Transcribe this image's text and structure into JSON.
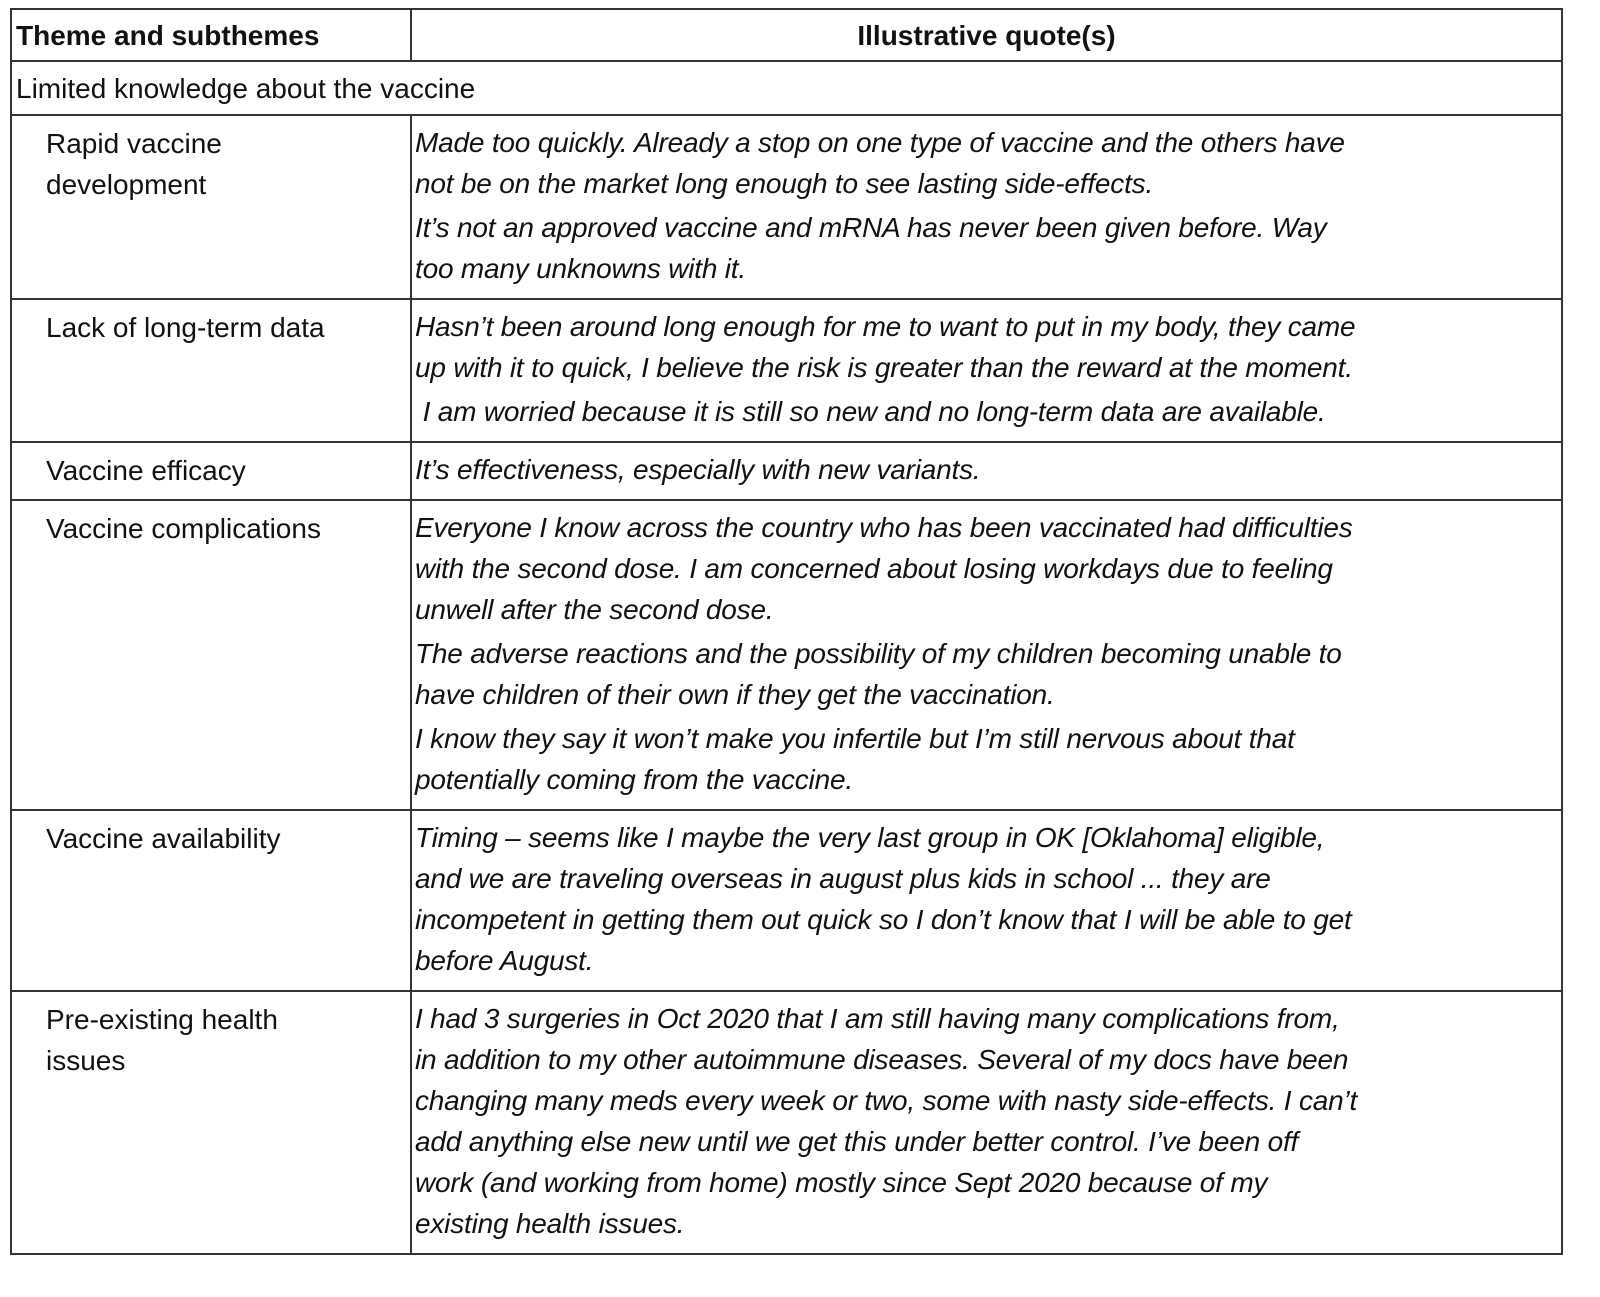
{
  "header": {
    "theme": "Theme and subthemes",
    "quotes": "Illustrative quote(s)"
  },
  "group": "Limited knowledge about the vaccine",
  "rows": [
    {
      "subtheme": "Rapid vaccine\ndevelopment",
      "quotes": [
        "Made too quickly. Already a stop on one type of vaccine and the others have\nnot be on the market long enough to see lasting side-effects.",
        "It’s not an approved vaccine and mRNA has never been given before. Way\ntoo many unknowns with it."
      ]
    },
    {
      "subtheme": "Lack of long-term data",
      "quotes": [
        "Hasn’t been around long enough for me to want to put in my body, they came\nup with it to quick, I believe the risk is greater than the reward at the moment.",
        " I am worried because it is still so new and no long-term data are available."
      ]
    },
    {
      "subtheme": "Vaccine efficacy",
      "quotes": [
        "It’s effectiveness, especially with new variants."
      ]
    },
    {
      "subtheme": "Vaccine complications",
      "quotes": [
        "Everyone I know across the country who has been vaccinated had difficulties\nwith the second dose. I am concerned about losing workdays due to feeling\nunwell after the second dose.",
        "The adverse reactions and the possibility of my children becoming unable to\nhave children of their own if they get the vaccination.",
        "I know they say it won’t make you infertile but I’m still nervous about that\npotentially coming from the vaccine."
      ]
    },
    {
      "subtheme": "Vaccine availability",
      "quotes": [
        "Timing – seems like I maybe the very last group in OK [Oklahoma] eligible,\nand we are traveling overseas in august plus kids in school ... they are\nincompetent in getting them out quick so I don’t know that I will be able to get\nbefore August."
      ]
    },
    {
      "subtheme": "Pre-existing health\nissues",
      "quotes": [
        "I had 3 surgeries in Oct 2020 that I am still having many complications from,\nin addition to my other autoimmune diseases. Several of my docs have been\nchanging many meds every week or two, some with nasty side-effects. I can’t\nadd anything else new until we get this under better control. I’ve been off\nwork (and working from home) mostly since Sept 2020 because of my\nexisting health issues."
      ]
    }
  ]
}
